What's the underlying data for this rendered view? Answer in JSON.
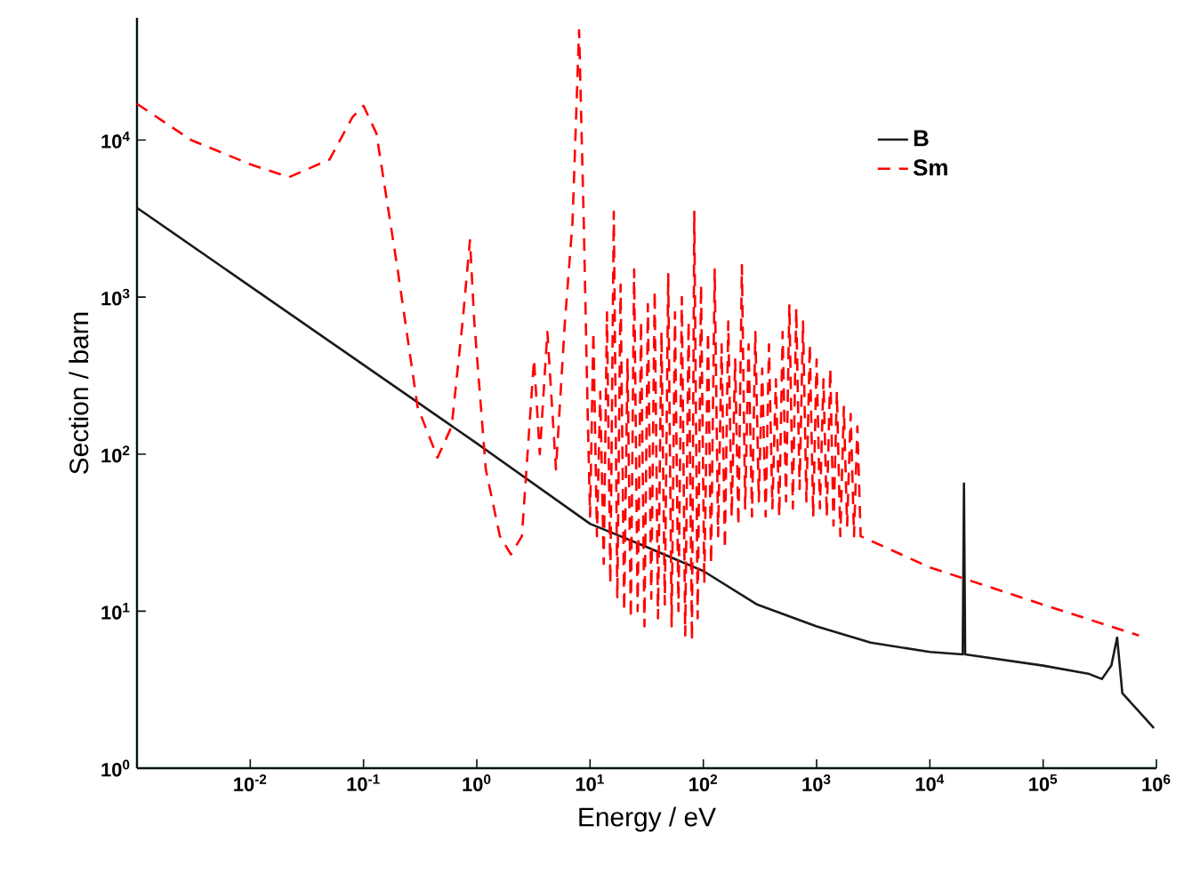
{
  "chart_data": {
    "type": "line",
    "xlabel": "Energy / eV",
    "ylabel": "Section / barn",
    "log": "xy",
    "grid": false,
    "legend": "top right",
    "xlim": [
      0.001,
      1000000
    ],
    "ylim": [
      1,
      60000
    ],
    "xticks": [
      {
        "value": 0.01,
        "label": "10$^{-2}$"
      },
      {
        "value": 0.1,
        "label": "10$^{-1}$"
      },
      {
        "value": 1,
        "label": "10$^{0}$"
      },
      {
        "value": 10,
        "label": "10$^{1}$"
      },
      {
        "value": 100,
        "label": "10$^{2}$"
      },
      {
        "value": 1000,
        "label": "10$^{3}$"
      },
      {
        "value": 10000,
        "label": "10$^{4}$"
      },
      {
        "value": 100000,
        "label": "10$^{5}$"
      },
      {
        "value": 1000000,
        "label": "10$^{6}$"
      }
    ],
    "yticks": [
      {
        "value": 1,
        "label": "10$^{0}$"
      },
      {
        "value": 10,
        "label": "10$^{1}$"
      },
      {
        "value": 100,
        "label": "10$^{2}$"
      },
      {
        "value": 1000,
        "label": "10$^{3}$"
      },
      {
        "value": 10000,
        "label": "10$^{4}$"
      }
    ],
    "series": [
      {
        "name": "B",
        "color": "#1a1a1a",
        "line_style": "solid",
        "x": [
          0.001,
          1,
          10,
          30,
          100,
          300,
          1000,
          3000,
          10000,
          19500,
          20000,
          20500,
          100000,
          250000,
          330000,
          400000,
          450000,
          500000,
          700000,
          950000
        ],
        "values": [
          3700,
          117,
          36,
          26,
          18,
          11,
          8,
          6.3,
          5.5,
          5.3,
          65,
          5.3,
          4.5,
          4.0,
          3.7,
          4.5,
          6.8,
          3.0,
          2.3,
          1.8
        ]
      },
      {
        "name": "Sm",
        "color": "#ff0000",
        "line_style": "dashed",
        "x": [
          0.001,
          0.003,
          0.01,
          0.022,
          0.05,
          0.08,
          0.1,
          0.13,
          0.2,
          0.3,
          0.45,
          0.6,
          0.75,
          0.87,
          0.95,
          1.2,
          1.6,
          2.0,
          2.5,
          3.2,
          3.6,
          4.2,
          5,
          6,
          7,
          8,
          8.8,
          9.5,
          10.0,
          10.7,
          11.5,
          12.3,
          13.2,
          14.1,
          15.1,
          16.2,
          17.4,
          18.6,
          20.0,
          21.4,
          22.9,
          24.5,
          26.3,
          28.2,
          30.2,
          32.4,
          34.7,
          37.2,
          39.8,
          42.7,
          45.7,
          49.0,
          52.5,
          56.2,
          60.3,
          64.6,
          69.2,
          74.1,
          79.4,
          83.2,
          89.1,
          95.5,
          102,
          110,
          117,
          126,
          135,
          145,
          155,
          166,
          178,
          191,
          204,
          219,
          234,
          251,
          269,
          288,
          309,
          331,
          355,
          380,
          407,
          437,
          468,
          501,
          537,
          575,
          617,
          661,
          708,
          759,
          813,
          871,
          933,
          1000,
          1070,
          1150,
          1230,
          1320,
          1410,
          1510,
          1620,
          1740,
          1860,
          2000,
          2140,
          2290,
          2450,
          10000,
          100000,
          700000
        ],
        "values": [
          17000,
          10000,
          7000,
          5800,
          7500,
          14000,
          16500,
          11000,
          1500,
          200,
          95,
          150,
          700,
          2300,
          700,
          80,
          30,
          23,
          30,
          400,
          100,
          600,
          80,
          700,
          3000,
          50000,
          3000,
          200,
          40,
          600,
          30,
          250,
          20,
          800,
          15,
          3500,
          12,
          1200,
          10,
          400,
          9,
          1500,
          10,
          700,
          8,
          900,
          12,
          1100,
          9,
          600,
          11,
          1400,
          8,
          800,
          10,
          1000,
          7,
          700,
          6.5,
          3500,
          9,
          1200,
          15,
          600,
          20,
          1500,
          30,
          500,
          25,
          700,
          40,
          400,
          35,
          1600,
          45,
          500,
          40,
          600,
          50,
          350,
          40,
          500,
          45,
          300,
          40,
          600,
          50,
          900,
          45,
          850,
          60,
          700,
          50,
          500,
          40,
          400,
          45,
          300,
          40,
          350,
          35,
          250,
          30,
          200,
          35,
          180,
          30,
          150,
          30,
          19,
          11,
          7
        ]
      }
    ]
  }
}
